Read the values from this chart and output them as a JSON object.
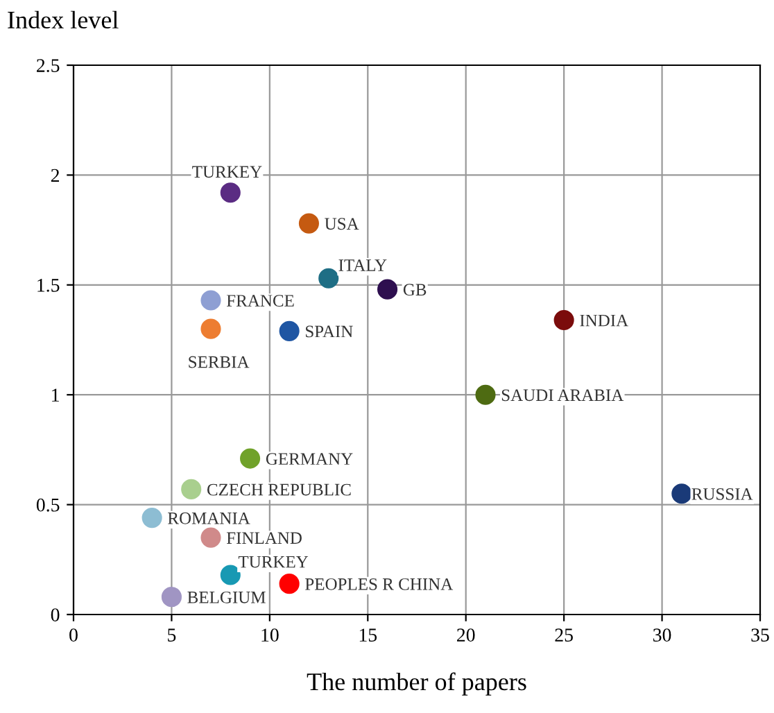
{
  "chart_data": {
    "type": "scatter",
    "xlabel": "The number of papers",
    "ylabel": "Index level",
    "xlim": [
      0,
      35
    ],
    "ylim": [
      0,
      2.5
    ],
    "xticks": [
      0,
      5,
      10,
      15,
      20,
      25,
      30,
      35
    ],
    "yticks": [
      0,
      0.5,
      1,
      1.5,
      2,
      2.5
    ],
    "grid": true,
    "marker": "circle",
    "legend": false,
    "series": [
      {
        "name": "TURKEY",
        "color": "#5b2c83",
        "x": [
          8
        ],
        "values": [
          1.92
        ]
      },
      {
        "name": "USA",
        "color": "#c55a11",
        "x": [
          12
        ],
        "values": [
          1.78
        ]
      },
      {
        "name": "ITALY",
        "color": "#1f6e85",
        "x": [
          13
        ],
        "values": [
          1.53
        ]
      },
      {
        "name": "GB",
        "color": "#2e0f4f",
        "x": [
          16
        ],
        "values": [
          1.48
        ]
      },
      {
        "name": "FRANCE",
        "color": "#8e9fd3",
        "x": [
          7
        ],
        "values": [
          1.43
        ]
      },
      {
        "name": "SERBIA",
        "color": "#ed7d31",
        "x": [
          7
        ],
        "values": [
          1.3
        ]
      },
      {
        "name": "SPAIN",
        "color": "#1f56a3",
        "x": [
          11
        ],
        "values": [
          1.29
        ]
      },
      {
        "name": "INDIA",
        "color": "#7b0c0c",
        "x": [
          25
        ],
        "values": [
          1.34
        ]
      },
      {
        "name": "SAUDI ARABIA",
        "color": "#4e6b12",
        "x": [
          21
        ],
        "values": [
          1.0
        ]
      },
      {
        "name": "GERMANY",
        "color": "#70a22a",
        "x": [
          9
        ],
        "values": [
          0.71
        ]
      },
      {
        "name": "CZECH REPUBLIC",
        "color": "#a9cf8e",
        "x": [
          6
        ],
        "values": [
          0.57
        ]
      },
      {
        "name": "RUSSIA",
        "color": "#1a3a78",
        "x": [
          31
        ],
        "values": [
          0.55
        ]
      },
      {
        "name": "ROMANIA",
        "color": "#8dbdd3",
        "x": [
          4
        ],
        "values": [
          0.44
        ]
      },
      {
        "name": "FINLAND",
        "color": "#d08a8a",
        "x": [
          7
        ],
        "values": [
          0.35
        ]
      },
      {
        "name": "TURKEY",
        "color": "#1899b3",
        "x": [
          8
        ],
        "values": [
          0.18
        ]
      },
      {
        "name": "PEOPLES R CHINA",
        "color": "#ff0000",
        "x": [
          11
        ],
        "values": [
          0.14
        ]
      },
      {
        "name": "BELGIUM",
        "color": "#a095c3",
        "x": [
          5
        ],
        "values": [
          0.08
        ]
      }
    ]
  }
}
